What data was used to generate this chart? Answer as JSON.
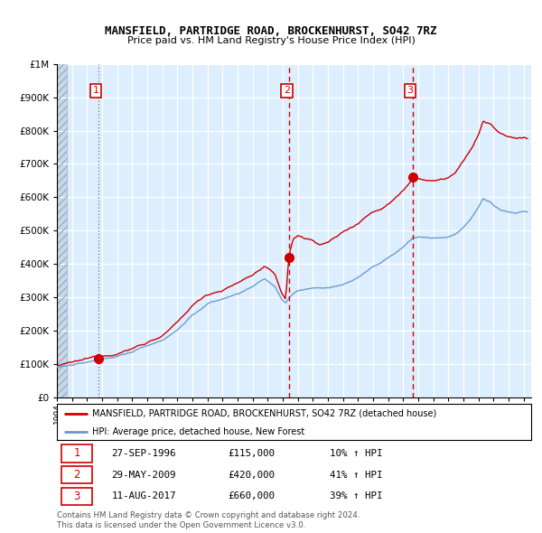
{
  "title": "MANSFIELD, PARTRIDGE ROAD, BROCKENHURST, SO42 7RZ",
  "subtitle": "Price paid vs. HM Land Registry's House Price Index (HPI)",
  "legend_line1": "MANSFIELD, PARTRIDGE ROAD, BROCKENHURST, SO42 7RZ (detached house)",
  "legend_line2": "HPI: Average price, detached house, New Forest",
  "footer1": "Contains HM Land Registry data © Crown copyright and database right 2024.",
  "footer2": "This data is licensed under the Open Government Licence v3.0.",
  "sale_points": [
    {
      "num": 1,
      "date": "27-SEP-1996",
      "price": 115000,
      "pct": "10%",
      "dir": "↑",
      "x": 1996.74
    },
    {
      "num": 2,
      "date": "29-MAY-2009",
      "price": 420000,
      "pct": "41%",
      "dir": "↑",
      "x": 2009.41
    },
    {
      "num": 3,
      "date": "11-AUG-2017",
      "price": 660000,
      "pct": "39%",
      "dir": "↑",
      "x": 2017.62
    }
  ],
  "vline_x": [
    1996.74,
    2009.41,
    2017.62
  ],
  "red_color": "#cc0000",
  "blue_color": "#6699cc",
  "bg_color": "#ddeeff",
  "ylim": [
    0,
    1000000
  ],
  "xlim": [
    1994.0,
    2025.5
  ]
}
